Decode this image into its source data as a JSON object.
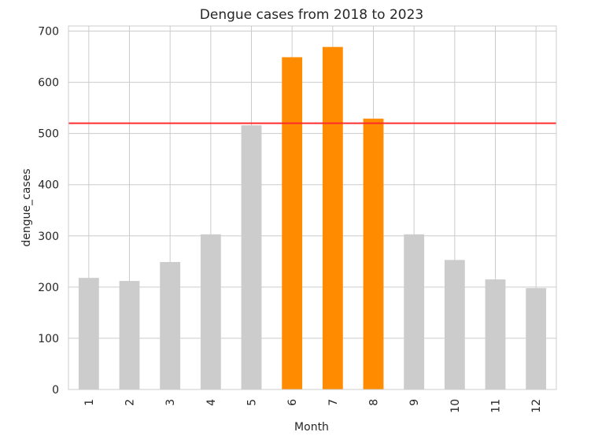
{
  "chart_data": {
    "type": "bar",
    "title": "Dengue cases from 2018 to 2023",
    "xlabel": "Month",
    "ylabel": "dengue_cases",
    "categories": [
      "1",
      "2",
      "3",
      "4",
      "5",
      "6",
      "7",
      "8",
      "9",
      "10",
      "11",
      "12"
    ],
    "values": [
      218,
      212,
      249,
      303,
      516,
      649,
      669,
      529,
      303,
      253,
      215,
      198
    ],
    "highlighted": [
      "6",
      "7",
      "8"
    ],
    "ylim": [
      0,
      710
    ],
    "yticks": [
      "0",
      "100",
      "200",
      "300",
      "400",
      "500",
      "600",
      "700"
    ],
    "reference_line": 520,
    "grid": true,
    "colors": {
      "bar": "#cccccc",
      "highlight": "#ff8c00",
      "reference_line": "#ff2d2d"
    }
  }
}
